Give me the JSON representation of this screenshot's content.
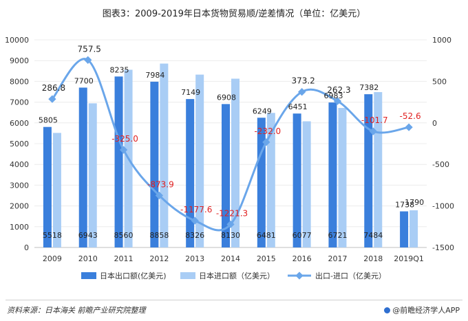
{
  "chart_data": {
    "type": "bar+line",
    "title": "图表3：2009-2019年日本货物贸易顺/逆差情况（单位：亿美元）",
    "categories": [
      "2009",
      "2010",
      "2011",
      "2012",
      "2013",
      "2014",
      "2015",
      "2016",
      "2017",
      "2018",
      "2019Q1"
    ],
    "series": [
      {
        "name": "日本出口额(亿美元)",
        "type": "bar",
        "axis": "left",
        "color": "#3a7fdc",
        "values": [
          5805,
          7700,
          8235,
          7984,
          7149,
          6908,
          6249,
          6451,
          6983,
          7382,
          1738
        ],
        "labels": [
          "5805",
          "7700",
          "8235",
          "7984",
          "7149",
          "6908",
          "6249",
          "6451",
          "6983",
          "7382",
          "1738"
        ]
      },
      {
        "name": "日本进口额（亿美元）",
        "type": "bar",
        "axis": "left",
        "color": "#a9cdf5",
        "values": [
          5518,
          6943,
          8560,
          8858,
          8326,
          8130,
          6481,
          6077,
          6721,
          7484,
          1790
        ],
        "labels": [
          "5518",
          "6943",
          "8560",
          "8858",
          "8326",
          "8130",
          "6481",
          "6077",
          "6721",
          "7484",
          "1790"
        ]
      },
      {
        "name": "出口-进口（亿美元）",
        "type": "line",
        "axis": "right",
        "color": "#6aa6ea",
        "values": [
          286.8,
          757.5,
          -325.0,
          -873.9,
          -1177.6,
          -1221.3,
          -232.0,
          373.2,
          262.3,
          -101.7,
          -52.6
        ],
        "labels": [
          "286.8",
          "757.5",
          "-325.0",
          "-873.9",
          "-1177.6",
          "-1221.3",
          "-232.0",
          "373.2",
          "262.3",
          "-101.7",
          "-52.6"
        ]
      }
    ],
    "y_left": {
      "min": 0,
      "max": 10000,
      "ticks": [
        "0",
        "1000",
        "2000",
        "3000",
        "4000",
        "5000",
        "6000",
        "7000",
        "8000",
        "9000",
        "10000"
      ]
    },
    "y_right": {
      "min": -1500,
      "max": 1000,
      "ticks": [
        "-1500",
        "-1000",
        "-500",
        "0",
        "500",
        "1000"
      ]
    },
    "legend_position": "bottom",
    "negative_label_color": "#e02020",
    "positive_label_color": "#222222"
  },
  "footer": {
    "source": "资料来源：日本海关  前瞻产业研究院整理",
    "brand": "@前瞻经济学人APP"
  }
}
